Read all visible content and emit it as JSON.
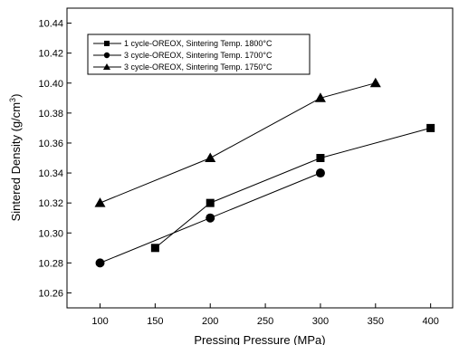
{
  "chart_data": {
    "type": "line",
    "xlabel": "Pressing Pressure (MPa)",
    "ylabel_main": "Sintered Density (g/cm",
    "ylabel_sup": "3",
    "ylabel_tail": ")",
    "xlim": [
      70,
      420
    ],
    "ylim": [
      10.25,
      10.45
    ],
    "x_ticks": [
      100,
      150,
      200,
      250,
      300,
      350,
      400
    ],
    "y_ticks": [
      10.26,
      10.28,
      10.3,
      10.32,
      10.34,
      10.36,
      10.38,
      10.4,
      10.42,
      10.44
    ],
    "y_tick_labels": [
      "10.26",
      "10.28",
      "10.30",
      "10.32",
      "10.34",
      "10.36",
      "10.38",
      "10.40",
      "10.42",
      "10.44"
    ],
    "grid": false,
    "legend_position": "top-left",
    "series": [
      {
        "name": "1 cycle-OREOX, Sintering Temp. 1800°C",
        "marker": "square",
        "x": [
          150,
          200,
          300,
          400
        ],
        "y": [
          10.29,
          10.32,
          10.35,
          10.37
        ]
      },
      {
        "name": "3 cycle-OREOX, Sintering Temp. 1700°C",
        "marker": "circle",
        "x": [
          100,
          200,
          300
        ],
        "y": [
          10.28,
          10.31,
          10.34
        ]
      },
      {
        "name": "3 cycle-OREOX, Sintering Temp. 1750°C",
        "marker": "triangle",
        "x": [
          100,
          200,
          300,
          350
        ],
        "y": [
          10.32,
          10.35,
          10.39,
          10.4
        ]
      }
    ]
  }
}
